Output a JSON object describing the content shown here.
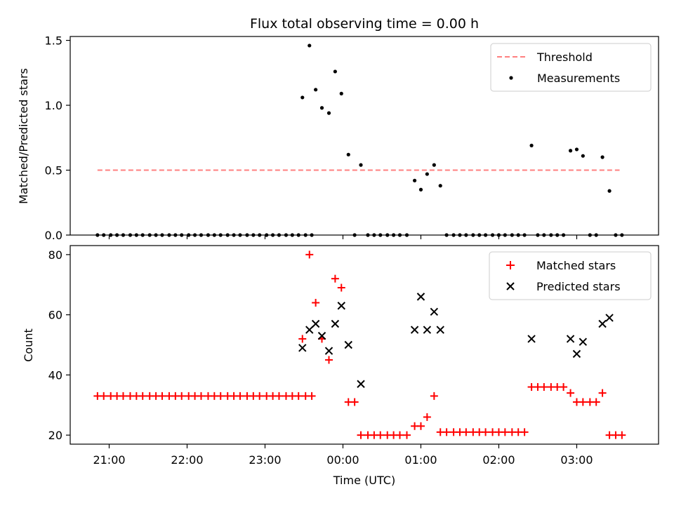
{
  "chart_data": [
    {
      "type": "scatter",
      "title": "Flux total observing time = 0.00 h",
      "xlabel": "",
      "ylabel": "Matched/Predicted stars",
      "ylim": [
        0,
        1.53
      ],
      "yticks": [
        "0.0",
        "0.5",
        "1.0",
        "1.5"
      ],
      "legend_position": "top-right",
      "threshold": {
        "name": "Threshold",
        "value": 0.5,
        "x_start": 20.85,
        "x_end": 27.55,
        "color": "#ff7f7f"
      },
      "series": [
        {
          "name": "Measurements",
          "color": "#000000",
          "points": [
            [
              20.85,
              0
            ],
            [
              20.93,
              0
            ],
            [
              21.02,
              0
            ],
            [
              21.1,
              0
            ],
            [
              21.18,
              0
            ],
            [
              21.27,
              0
            ],
            [
              21.35,
              0
            ],
            [
              21.43,
              0
            ],
            [
              21.52,
              0
            ],
            [
              21.6,
              0
            ],
            [
              21.68,
              0
            ],
            [
              21.77,
              0
            ],
            [
              21.85,
              0
            ],
            [
              21.93,
              0
            ],
            [
              22.02,
              0
            ],
            [
              22.1,
              0
            ],
            [
              22.18,
              0
            ],
            [
              22.27,
              0
            ],
            [
              22.35,
              0
            ],
            [
              22.43,
              0
            ],
            [
              22.52,
              0
            ],
            [
              22.6,
              0
            ],
            [
              22.68,
              0
            ],
            [
              22.77,
              0
            ],
            [
              22.85,
              0
            ],
            [
              22.93,
              0
            ],
            [
              23.02,
              0
            ],
            [
              23.1,
              0
            ],
            [
              23.18,
              0
            ],
            [
              23.27,
              0
            ],
            [
              23.35,
              0
            ],
            [
              23.43,
              0
            ],
            [
              23.52,
              0
            ],
            [
              23.6,
              0
            ],
            [
              23.48,
              1.06
            ],
            [
              23.57,
              1.46
            ],
            [
              23.65,
              1.12
            ],
            [
              23.73,
              0.98
            ],
            [
              23.82,
              0.94
            ],
            [
              23.9,
              1.26
            ],
            [
              23.98,
              1.09
            ],
            [
              24.07,
              0.62
            ],
            [
              24.15,
              0
            ],
            [
              24.23,
              0.54
            ],
            [
              24.32,
              0
            ],
            [
              24.4,
              0
            ],
            [
              24.48,
              0
            ],
            [
              24.57,
              0
            ],
            [
              24.65,
              0
            ],
            [
              24.73,
              0
            ],
            [
              24.82,
              0
            ],
            [
              24.92,
              0.42
            ],
            [
              25.0,
              0.35
            ],
            [
              25.08,
              0.47
            ],
            [
              25.17,
              0.54
            ],
            [
              25.25,
              0.38
            ],
            [
              25.33,
              0
            ],
            [
              25.42,
              0
            ],
            [
              25.5,
              0
            ],
            [
              25.58,
              0
            ],
            [
              25.67,
              0
            ],
            [
              25.75,
              0
            ],
            [
              25.83,
              0
            ],
            [
              25.92,
              0
            ],
            [
              26.0,
              0
            ],
            [
              26.08,
              0
            ],
            [
              26.17,
              0
            ],
            [
              26.25,
              0
            ],
            [
              26.33,
              0
            ],
            [
              26.42,
              0.69
            ],
            [
              26.5,
              0
            ],
            [
              26.58,
              0
            ],
            [
              26.67,
              0
            ],
            [
              26.75,
              0
            ],
            [
              26.83,
              0
            ],
            [
              26.92,
              0.65
            ],
            [
              27.0,
              0.66
            ],
            [
              27.08,
              0.61
            ],
            [
              27.17,
              0
            ],
            [
              27.25,
              0
            ],
            [
              27.33,
              0.6
            ],
            [
              27.42,
              0.34
            ],
            [
              27.5,
              0
            ],
            [
              27.58,
              0
            ]
          ]
        }
      ]
    },
    {
      "type": "scatter",
      "title": "",
      "xlabel": "Time (UTC)",
      "ylabel": "Count",
      "xlim": [
        20.5,
        28.05
      ],
      "ylim": [
        17,
        83
      ],
      "xticks": [
        "21:00",
        "22:00",
        "23:00",
        "00:00",
        "01:00",
        "02:00",
        "03:00"
      ],
      "yticks": [
        "20",
        "40",
        "60",
        "80"
      ],
      "legend_position": "top-right",
      "series": [
        {
          "name": "Matched stars",
          "color": "#ff0000",
          "marker": "plus",
          "points": [
            [
              20.85,
              33
            ],
            [
              20.93,
              33
            ],
            [
              21.02,
              33
            ],
            [
              21.1,
              33
            ],
            [
              21.18,
              33
            ],
            [
              21.27,
              33
            ],
            [
              21.35,
              33
            ],
            [
              21.43,
              33
            ],
            [
              21.52,
              33
            ],
            [
              21.6,
              33
            ],
            [
              21.68,
              33
            ],
            [
              21.77,
              33
            ],
            [
              21.85,
              33
            ],
            [
              21.93,
              33
            ],
            [
              22.02,
              33
            ],
            [
              22.1,
              33
            ],
            [
              22.18,
              33
            ],
            [
              22.27,
              33
            ],
            [
              22.35,
              33
            ],
            [
              22.43,
              33
            ],
            [
              22.52,
              33
            ],
            [
              22.6,
              33
            ],
            [
              22.68,
              33
            ],
            [
              22.77,
              33
            ],
            [
              22.85,
              33
            ],
            [
              22.93,
              33
            ],
            [
              23.02,
              33
            ],
            [
              23.1,
              33
            ],
            [
              23.18,
              33
            ],
            [
              23.27,
              33
            ],
            [
              23.35,
              33
            ],
            [
              23.43,
              33
            ],
            [
              23.52,
              33
            ],
            [
              23.6,
              33
            ],
            [
              23.48,
              52
            ],
            [
              23.57,
              80
            ],
            [
              23.65,
              64
            ],
            [
              23.73,
              52
            ],
            [
              23.82,
              45
            ],
            [
              23.9,
              72
            ],
            [
              23.98,
              69
            ],
            [
              24.07,
              31
            ],
            [
              24.15,
              31
            ],
            [
              24.23,
              20
            ],
            [
              24.32,
              20
            ],
            [
              24.4,
              20
            ],
            [
              24.48,
              20
            ],
            [
              24.57,
              20
            ],
            [
              24.65,
              20
            ],
            [
              24.73,
              20
            ],
            [
              24.82,
              20
            ],
            [
              24.92,
              23
            ],
            [
              25.0,
              23
            ],
            [
              25.08,
              26
            ],
            [
              25.17,
              33
            ],
            [
              25.25,
              21
            ],
            [
              25.33,
              21
            ],
            [
              25.42,
              21
            ],
            [
              25.5,
              21
            ],
            [
              25.58,
              21
            ],
            [
              25.67,
              21
            ],
            [
              25.75,
              21
            ],
            [
              25.83,
              21
            ],
            [
              25.92,
              21
            ],
            [
              26.0,
              21
            ],
            [
              26.08,
              21
            ],
            [
              26.17,
              21
            ],
            [
              26.25,
              21
            ],
            [
              26.33,
              21
            ],
            [
              26.42,
              36
            ],
            [
              26.5,
              36
            ],
            [
              26.58,
              36
            ],
            [
              26.67,
              36
            ],
            [
              26.75,
              36
            ],
            [
              26.83,
              36
            ],
            [
              26.92,
              34
            ],
            [
              27.0,
              31
            ],
            [
              27.08,
              31
            ],
            [
              27.17,
              31
            ],
            [
              27.25,
              31
            ],
            [
              27.33,
              34
            ],
            [
              27.42,
              20
            ],
            [
              27.5,
              20
            ],
            [
              27.58,
              20
            ]
          ]
        },
        {
          "name": "Predicted stars",
          "color": "#000000",
          "marker": "x",
          "points": [
            [
              23.48,
              49
            ],
            [
              23.57,
              55
            ],
            [
              23.65,
              57
            ],
            [
              23.73,
              53
            ],
            [
              23.82,
              48
            ],
            [
              23.9,
              57
            ],
            [
              23.98,
              63
            ],
            [
              24.07,
              50
            ],
            [
              24.23,
              37
            ],
            [
              24.92,
              55
            ],
            [
              25.0,
              66
            ],
            [
              25.08,
              55
            ],
            [
              25.17,
              61
            ],
            [
              25.25,
              55
            ],
            [
              26.42,
              52
            ],
            [
              26.92,
              52
            ],
            [
              27.0,
              47
            ],
            [
              27.08,
              51
            ],
            [
              27.33,
              57
            ],
            [
              27.42,
              59
            ]
          ]
        }
      ]
    }
  ]
}
